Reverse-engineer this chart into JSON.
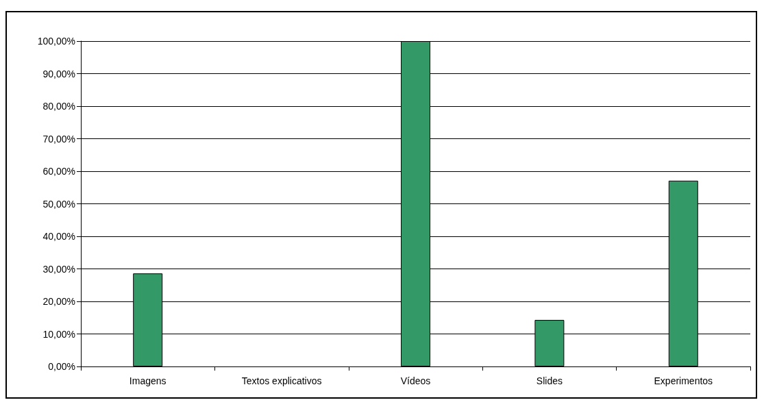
{
  "chart_data": {
    "type": "bar",
    "categories": [
      "Imagens",
      "Textos explicativos",
      "Vídeos",
      "Slides",
      "Experimentos"
    ],
    "values": [
      28.6,
      0,
      100,
      14.3,
      57.1
    ],
    "color": "#339966",
    "ylim": [
      0,
      100
    ],
    "yticks": [
      {
        "value": 0,
        "label": "0,00%"
      },
      {
        "value": 10,
        "label": "10,00%"
      },
      {
        "value": 20,
        "label": "20,00%"
      },
      {
        "value": 30,
        "label": "30,00%"
      },
      {
        "value": 40,
        "label": "40,00%"
      },
      {
        "value": 50,
        "label": "50,00%"
      },
      {
        "value": 60,
        "label": "60,00%"
      },
      {
        "value": 70,
        "label": "70,00%"
      },
      {
        "value": 80,
        "label": "80,00%"
      },
      {
        "value": 90,
        "label": "90,00%"
      },
      {
        "value": 100,
        "label": "100,00%"
      }
    ],
    "grid": "y"
  }
}
